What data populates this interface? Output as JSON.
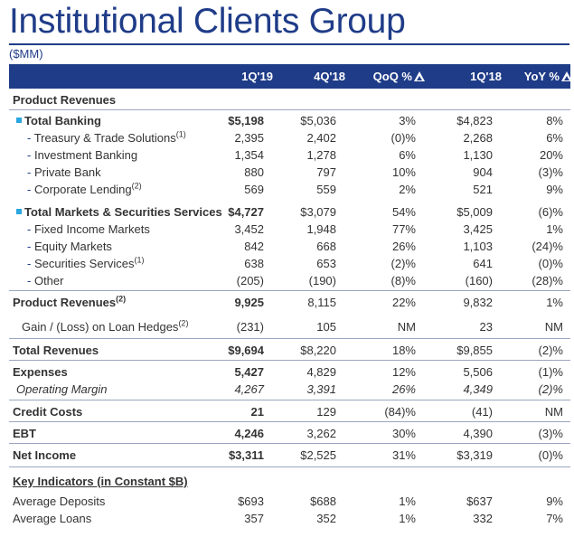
{
  "title": "Institutional Clients Group",
  "units": "($MM)",
  "columns": [
    "1Q'19",
    "4Q'18",
    "QoQ %",
    "1Q'18",
    "YoY %"
  ],
  "sections": {
    "product_revenues_header": "Product Revenues",
    "key_indicators_header": "Key Indicators (in Constant $B)"
  },
  "rows": [
    {
      "label": "Total Banking",
      "sup": "",
      "vals": [
        "$5,198",
        "$5,036",
        "3%",
        "$4,823",
        "8%"
      ]
    },
    {
      "label": "Treasury & Trade Solutions",
      "sup": "(1)",
      "vals": [
        "2,395",
        "2,402",
        "(0)%",
        "2,268",
        "6%"
      ]
    },
    {
      "label": "Investment Banking",
      "sup": "",
      "vals": [
        "1,354",
        "1,278",
        "6%",
        "1,130",
        "20%"
      ]
    },
    {
      "label": "Private Bank",
      "sup": "",
      "vals": [
        "880",
        "797",
        "10%",
        "904",
        "(3)%"
      ]
    },
    {
      "label": "Corporate Lending",
      "sup": "(2)",
      "vals": [
        "569",
        "559",
        "2%",
        "521",
        "9%"
      ]
    },
    {
      "label": "Total Markets & Securities Services",
      "sup": "",
      "vals": [
        "$4,727",
        "$3,079",
        "54%",
        "$5,009",
        "(6)%"
      ]
    },
    {
      "label": "Fixed Income Markets",
      "sup": "",
      "vals": [
        "3,452",
        "1,948",
        "77%",
        "3,425",
        "1%"
      ]
    },
    {
      "label": "Equity Markets",
      "sup": "",
      "vals": [
        "842",
        "668",
        "26%",
        "1,103",
        "(24)%"
      ]
    },
    {
      "label": "Securities Services",
      "sup": "(1)",
      "vals": [
        "638",
        "653",
        "(2)%",
        "641",
        "(0)%"
      ]
    },
    {
      "label": "Other",
      "sup": "",
      "vals": [
        "(205)",
        "(190)",
        "(8)%",
        "(160)",
        "(28)%"
      ]
    },
    {
      "label": "Product Revenues",
      "sup": "(2)",
      "vals": [
        "9,925",
        "8,115",
        "22%",
        "9,832",
        "1%"
      ]
    },
    {
      "label": "Gain / (Loss) on Loan Hedges",
      "sup": "(2)",
      "vals": [
        "(231)",
        "105",
        "NM",
        "23",
        "NM"
      ]
    },
    {
      "label": "Total Revenues",
      "sup": "",
      "vals": [
        "$9,694",
        "$8,220",
        "18%",
        "$9,855",
        "(2)%"
      ]
    },
    {
      "label": "Expenses",
      "sup": "",
      "vals": [
        "5,427",
        "4,829",
        "12%",
        "5,506",
        "(1)%"
      ]
    },
    {
      "label": "Operating Margin",
      "sup": "",
      "vals": [
        "4,267",
        "3,391",
        "26%",
        "4,349",
        "(2)%"
      ]
    },
    {
      "label": "Credit Costs",
      "sup": "",
      "vals": [
        "21",
        "129",
        "(84)%",
        "(41)",
        "NM"
      ]
    },
    {
      "label": "EBT",
      "sup": "",
      "vals": [
        "4,246",
        "3,262",
        "30%",
        "4,390",
        "(3)%"
      ]
    },
    {
      "label": "Net Income",
      "sup": "",
      "vals": [
        "$3,311",
        "$2,525",
        "31%",
        "$3,319",
        "(0)%"
      ]
    },
    {
      "label": "Average Deposits",
      "sup": "",
      "vals": [
        "$693",
        "$688",
        "1%",
        "$637",
        "9%"
      ]
    },
    {
      "label": "Average Loans",
      "sup": "",
      "vals": [
        "357",
        "352",
        "1%",
        "332",
        "7%"
      ]
    }
  ],
  "colors": {
    "brand_blue": "#1f3c88",
    "bullet_cyan": "#2aa7e0"
  }
}
